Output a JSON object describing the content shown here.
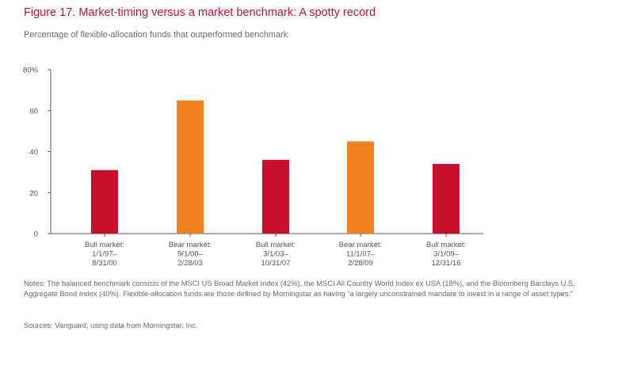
{
  "title": "Figure 17. Market-timing versus a market benchmark: A spotty record",
  "subtitle": "Percentage of flexible-allocation funds that outperformed benchmark",
  "notes": "Notes: The balanced benchmark consists of the MSCI US Broad Market Index (42%), the MSCI All Country World Index ex USA (18%), and the Bloomberg Barclays U.S. Aggregate Bond Index (40%). Flexible-allocation funds are those defined by Morningstar as having “a largely unconstrained mandate to invest in a range of asset types.”",
  "sources": "Sources: Vanguard, using data from Morningstar, Inc.",
  "colors": {
    "bull": "#c8102e",
    "bear": "#f08020",
    "title": "#c8102e",
    "text": "#6b6b6b"
  },
  "chart_data": {
    "type": "bar",
    "categories": [
      [
        "Bull market:",
        "1/1/97–",
        "8/31/00"
      ],
      [
        "Bear market:",
        "9/1/00–",
        "2/28/03"
      ],
      [
        "Bull market:",
        "3/1/03–",
        "10/31/07"
      ],
      [
        "Bear market:",
        "11/1/07–",
        "2/28/09"
      ],
      [
        "Bull market:",
        "3/1/09–",
        "12/31/16"
      ]
    ],
    "values": [
      31,
      65,
      36,
      45,
      34
    ],
    "bar_types": [
      "bull",
      "bear",
      "bull",
      "bear",
      "bull"
    ],
    "ylim": [
      0,
      80
    ],
    "yticks": [
      {
        "value": 0,
        "label": "0"
      },
      {
        "value": 20,
        "label": "20"
      },
      {
        "value": 40,
        "label": "40"
      },
      {
        "value": 60,
        "label": "60"
      },
      {
        "value": 80,
        "label": "80%"
      }
    ],
    "grid": false
  }
}
